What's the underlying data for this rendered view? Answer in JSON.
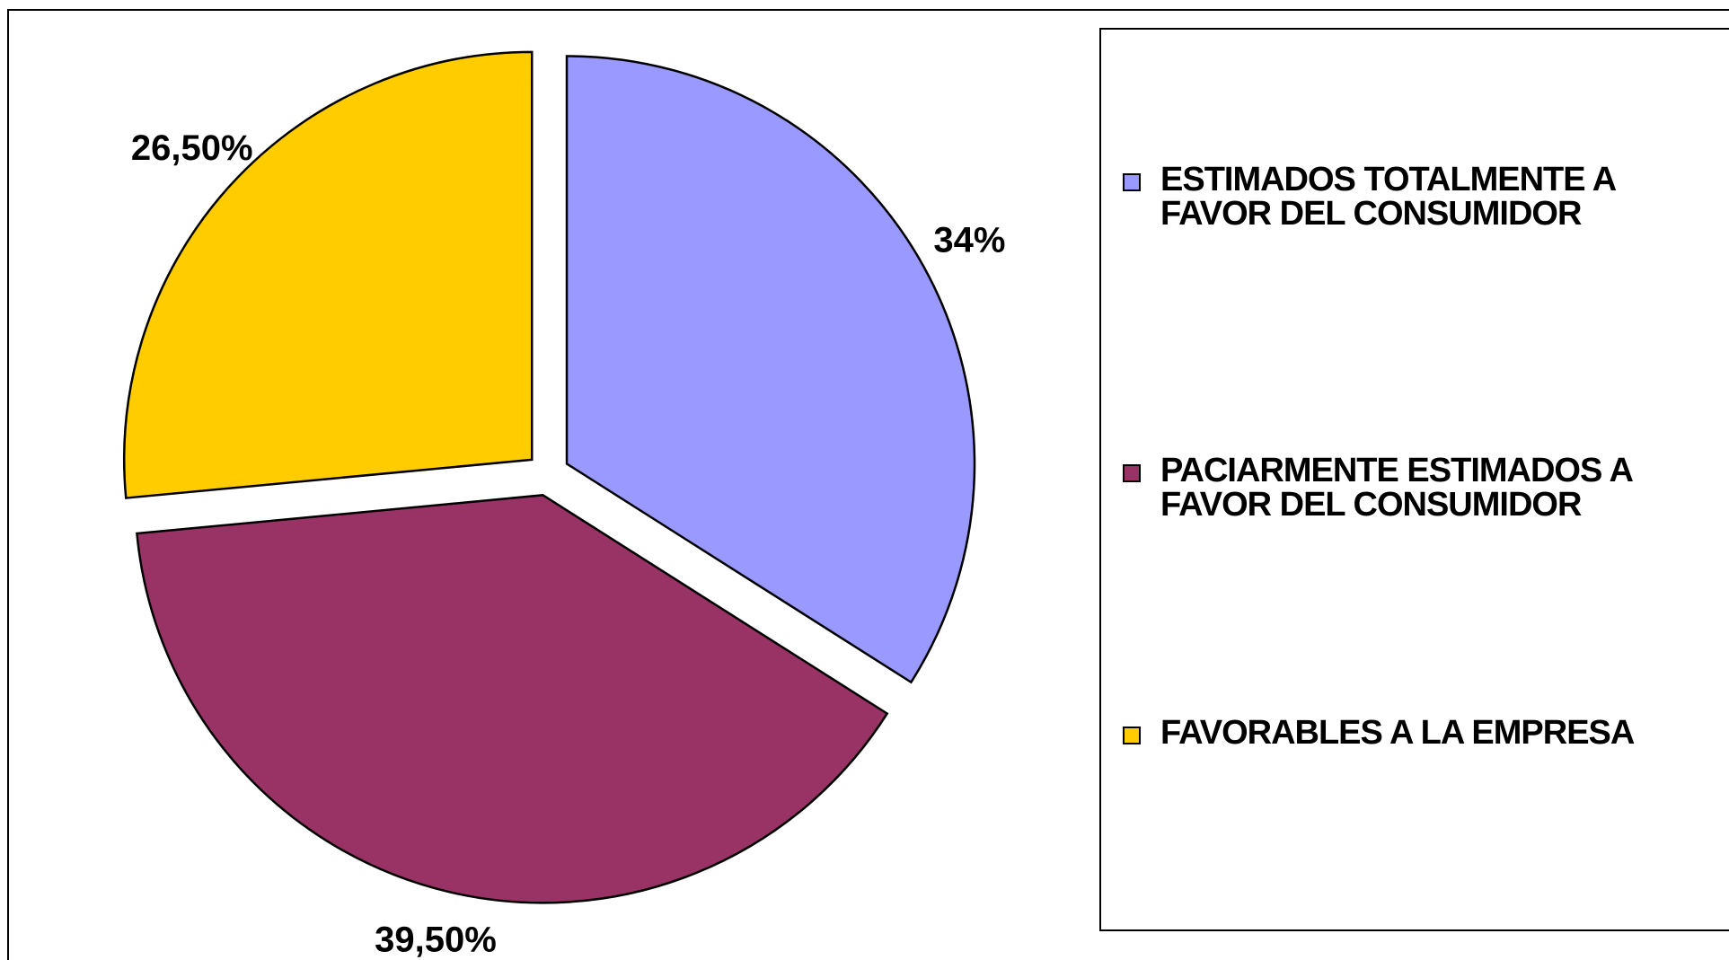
{
  "chart_data": {
    "type": "pie",
    "series": [
      {
        "name": "ESTIMADOS TOTALMENTE A FAVOR DEL CONSUMIDOR",
        "color": "#9999ff",
        "values": [
          34
        ],
        "value_labels": [
          "34%"
        ]
      },
      {
        "name": "PACIARMENTE ESTIMADOS A FAVOR DEL CONSUMIDOR",
        "color": "#993366",
        "values": [
          39.5
        ],
        "value_labels": [
          "39,50%"
        ]
      },
      {
        "name": "FAVORABLES A LA EMPRESA",
        "color": "#ffcc00",
        "values": [
          26.5
        ],
        "value_labels": [
          "26,50%"
        ]
      }
    ],
    "legend": "right"
  }
}
